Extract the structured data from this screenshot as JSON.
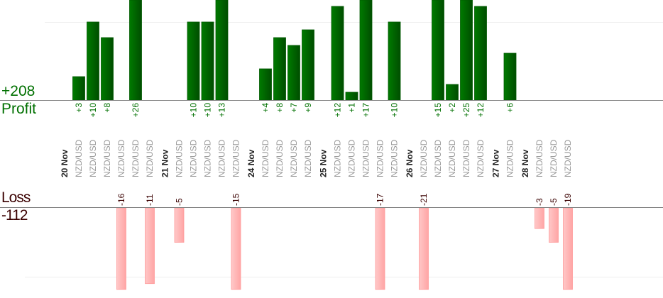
{
  "summary": {
    "profit_total": "+208",
    "profit_label": "Profit",
    "loss_label": "Loss",
    "loss_total": "-112"
  },
  "colors": {
    "profit": "#006400",
    "loss": "#ffb0b0",
    "profit_text": "#007000",
    "loss_text": "#3a0000",
    "axis": "#808080",
    "pair_text": "#999999"
  },
  "chart_data": {
    "type": "bar",
    "profit_ylim": [
      0,
      12.8
    ],
    "loss_ylim": [
      -12,
      0
    ],
    "grid": true,
    "days": [
      {
        "date": "20 Nov",
        "trades": [
          {
            "pair": "NZD/USD",
            "value": 3,
            "label": "+3"
          },
          {
            "pair": "NZD/USD",
            "value": 10,
            "label": "+10"
          },
          {
            "pair": "NZD/USD",
            "value": 8,
            "label": "+8"
          },
          {
            "pair": "NZD/USD",
            "value": -16,
            "label": "-16"
          },
          {
            "pair": "NZD/USD",
            "value": 26,
            "label": "+26"
          },
          {
            "pair": "NZD/USD",
            "value": -11,
            "label": "-11"
          }
        ]
      },
      {
        "date": "21 Nov",
        "trades": [
          {
            "pair": "NZD/USD",
            "value": -5,
            "label": "-5"
          },
          {
            "pair": "NZD/USD",
            "value": 10,
            "label": "+10"
          },
          {
            "pair": "NZD/USD",
            "value": 10,
            "label": "+10"
          },
          {
            "pair": "NZD/USD",
            "value": 13,
            "label": "+13"
          },
          {
            "pair": "NZD/USD",
            "value": -15,
            "label": "-15"
          }
        ]
      },
      {
        "date": "24 Nov",
        "trades": [
          {
            "pair": "NZD/USD",
            "value": 4,
            "label": "+4"
          },
          {
            "pair": "NZD/USD",
            "value": 8,
            "label": "+8"
          },
          {
            "pair": "NZD/USD",
            "value": 7,
            "label": "+7"
          },
          {
            "pair": "NZD/USD",
            "value": 9,
            "label": "+9"
          }
        ]
      },
      {
        "date": "25 Nov",
        "trades": [
          {
            "pair": "NZD/USD",
            "value": 12,
            "label": "+12"
          },
          {
            "pair": "NZD/USD",
            "value": 1,
            "label": "+1"
          },
          {
            "pair": "NZD/USD",
            "value": 17,
            "label": "+17"
          },
          {
            "pair": "NZD/USD",
            "value": -17,
            "label": "-17"
          },
          {
            "pair": "NZD/USD",
            "value": 10,
            "label": "+10"
          }
        ]
      },
      {
        "date": "26 Nov",
        "trades": [
          {
            "pair": "NZD/USD",
            "value": -21,
            "label": "-21"
          },
          {
            "pair": "NZD/USD",
            "value": 15,
            "label": "+15"
          },
          {
            "pair": "NZD/USD",
            "value": 2,
            "label": "+2"
          },
          {
            "pair": "NZD/USD",
            "value": 25,
            "label": "+25"
          },
          {
            "pair": "NZD/USD",
            "value": 12,
            "label": "+12"
          }
        ]
      },
      {
        "date": "27 Nov",
        "trades": [
          {
            "pair": "NZD/USD",
            "value": 6,
            "label": "+6"
          }
        ]
      },
      {
        "date": "28 Nov",
        "trades": [
          {
            "pair": "NZD/USD",
            "value": -3,
            "label": "-3"
          },
          {
            "pair": "NZD/USD",
            "value": -5,
            "label": "-5"
          },
          {
            "pair": "NZD/USD",
            "value": -19,
            "label": "-19"
          }
        ]
      }
    ]
  }
}
